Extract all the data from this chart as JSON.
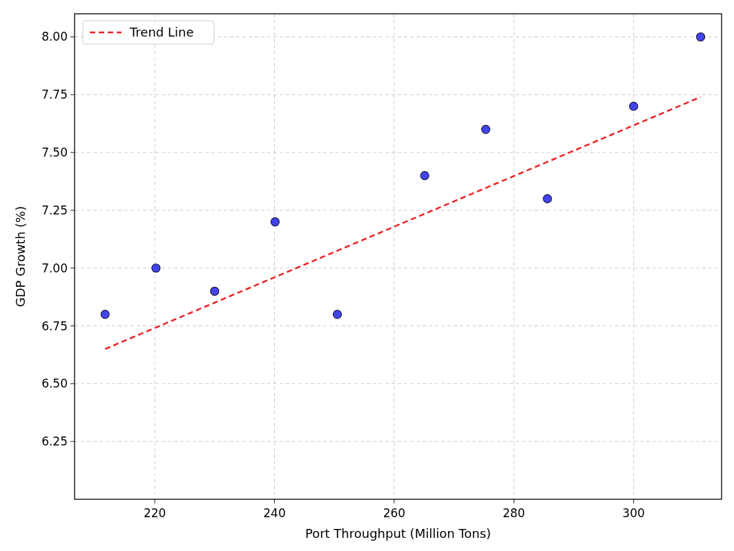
{
  "chart_data": {
    "type": "scatter",
    "xlabel": "Port Throughput (Million Tons)",
    "ylabel": "GDP Growth (%)",
    "x": [
      211.7,
      220.2,
      230,
      240.1,
      250.5,
      265.1,
      275.3,
      285.6,
      300,
      311.2
    ],
    "series": [
      {
        "color": "#4444ee",
        "marker": "circle",
        "values": [
          6.8,
          7.0,
          6.9,
          7.2,
          6.8,
          7.4,
          7.6,
          7.3,
          7.7,
          8.0
        ]
      },
      {
        "type": "line",
        "name": "Trend Line",
        "color": "#ee2222",
        "line_style": "dashed",
        "marker": "none",
        "x": [
          211.7,
          311.2
        ],
        "values": [
          6.65,
          7.74
        ]
      }
    ],
    "xlim": [
      206.6,
      314.7
    ],
    "xticks": [
      220,
      240,
      260,
      280,
      300
    ],
    "ylim": [
      6.0,
      8.1
    ],
    "yticks": [
      {
        "value": 6.25,
        "label": "6.25"
      },
      {
        "value": 6.5,
        "label": "6.50"
      },
      {
        "value": 6.75,
        "label": "6.75"
      },
      {
        "value": 7,
        "label": "7.00"
      },
      {
        "value": 7.25,
        "label": "7.25"
      },
      {
        "value": 7.5,
        "label": "7.50"
      },
      {
        "value": 7.75,
        "label": "7.75"
      },
      {
        "value": 8,
        "label": "8.00"
      }
    ],
    "grid": true,
    "legend": "top left"
  }
}
